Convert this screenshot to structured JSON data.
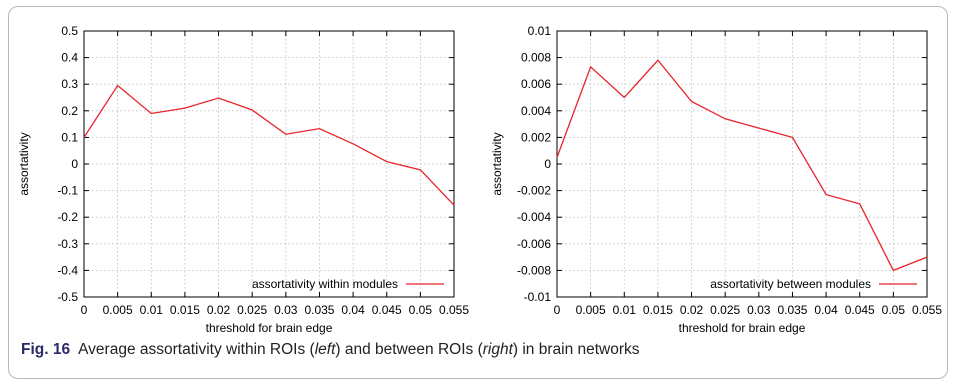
{
  "chart_data": [
    {
      "type": "line",
      "xlabel": "threshold for brain edge",
      "ylabel": "assortativity",
      "xlim": [
        0,
        0.055
      ],
      "ylim": [
        -0.5,
        0.5
      ],
      "xticks": [
        "0",
        "0.005",
        "0.01",
        "0.015",
        "0.02",
        "0.025",
        "0.03",
        "0.035",
        "0.04",
        "0.045",
        "0.05",
        "0.055"
      ],
      "yticks": [
        "-0.5",
        "-0.4",
        "-0.3",
        "-0.2",
        "-0.1",
        "0",
        "0.1",
        "0.2",
        "0.3",
        "0.4",
        "0.5"
      ],
      "grid": true,
      "legend_position": "bottom-right",
      "series": [
        {
          "name": "assortativity within modules",
          "color": "#e8232a",
          "x": [
            0,
            0.005,
            0.01,
            0.015,
            0.02,
            0.025,
            0.03,
            0.035,
            0.04,
            0.045,
            0.05,
            0.055
          ],
          "y": [
            0.1,
            0.295,
            0.19,
            0.21,
            0.248,
            0.203,
            0.112,
            0.133,
            0.076,
            0.009,
            -0.022,
            -0.155
          ]
        }
      ]
    },
    {
      "type": "line",
      "xlabel": "threshold for brain edge",
      "ylabel": "assortativity",
      "xlim": [
        0,
        0.055
      ],
      "ylim": [
        -0.01,
        0.01
      ],
      "xticks": [
        "0",
        "0.005",
        "0.01",
        "0.015",
        "0.02",
        "0.025",
        "0.03",
        "0.035",
        "0.04",
        "0.045",
        "0.05",
        "0.055"
      ],
      "yticks": [
        "-0.01",
        "-0.008",
        "-0.006",
        "-0.004",
        "-0.002",
        "0",
        "0.002",
        "0.004",
        "0.006",
        "0.008",
        "0.01"
      ],
      "grid": true,
      "legend_position": "bottom-right",
      "series": [
        {
          "name": "assortativity between modules",
          "color": "#e8232a",
          "x": [
            0,
            0.005,
            0.01,
            0.015,
            0.02,
            0.025,
            0.03,
            0.035,
            0.04,
            0.045,
            0.05,
            0.055
          ],
          "y": [
            0.0005,
            0.0073,
            0.005,
            0.0078,
            0.0047,
            0.0034,
            0.0027,
            0.002,
            -0.0023,
            -0.003,
            -0.008,
            -0.007
          ]
        }
      ]
    }
  ],
  "caption": {
    "label": "Fig. 16",
    "text_1": "Average assortativity within ROIs (",
    "left_word": "left",
    "text_2": ") and between ROIs (",
    "right_word": "right",
    "text_3": ") in brain networks"
  }
}
